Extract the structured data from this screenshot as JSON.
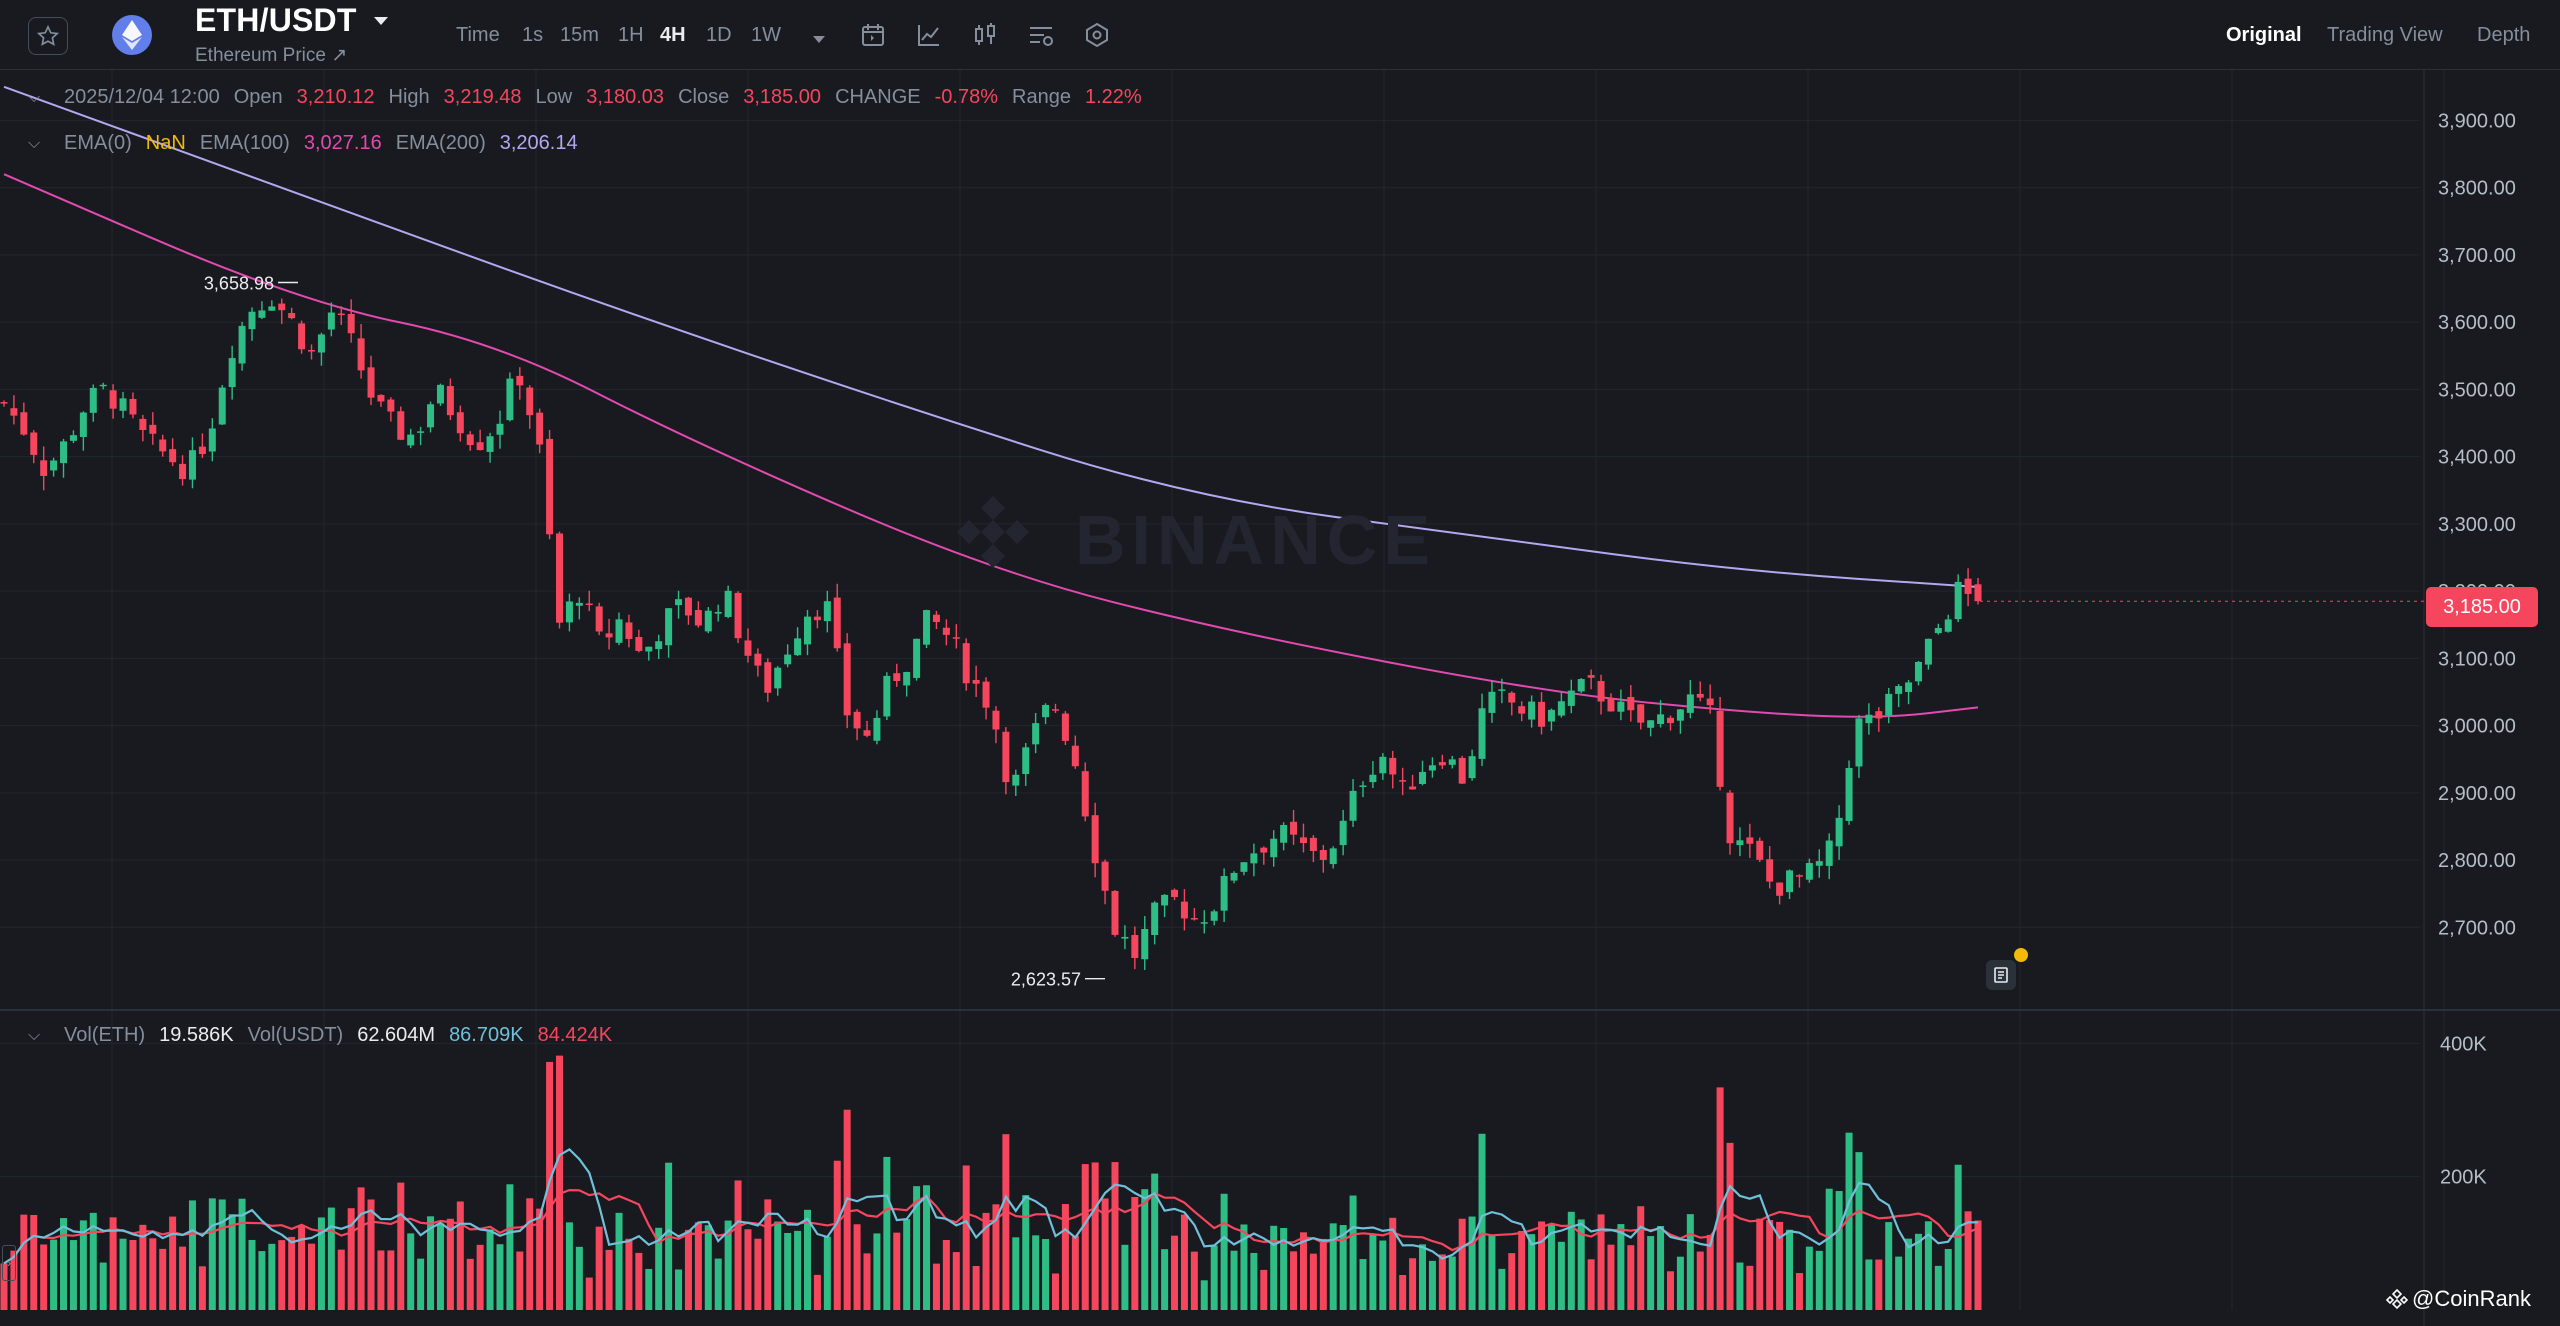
{
  "header": {
    "pair": "ETH/USDT",
    "subtitle": "Ethereum Price ↗",
    "timeframes": [
      "Time",
      "1s",
      "15m",
      "1H",
      "4H",
      "1D",
      "1W"
    ],
    "active_timeframe": "4H",
    "view_tabs": [
      "Original",
      "Trading View",
      "Depth"
    ],
    "active_view": "Original"
  },
  "ohlc": {
    "date": "2025/12/04 12:00",
    "open_label": "Open",
    "open": "3,210.12",
    "high_label": "High",
    "high": "3,219.48",
    "low_label": "Low",
    "low": "3,180.03",
    "close_label": "Close",
    "close": "3,185.00",
    "change_label": "CHANGE",
    "change": "-0.78%",
    "range_label": "Range",
    "range": "1.22%"
  },
  "ema": {
    "ema0_label": "EMA(0)",
    "ema0": "NaN",
    "ema100_label": "EMA(100)",
    "ema100": "3,027.16",
    "ema200_label": "EMA(200)",
    "ema200": "3,206.14"
  },
  "volume_legend": {
    "vol_eth_label": "Vol(ETH)",
    "vol_eth": "19.586K",
    "vol_usdt_label": "Vol(USDT)",
    "vol_usdt": "62.604M",
    "ma1": "86.709K",
    "ma2": "84.424K"
  },
  "current_price": "3,185.00",
  "watermark": "BINANCE",
  "footer_brand": "@CoinRank",
  "colors": {
    "up": "#2ebd85",
    "down": "#f6465d",
    "ema100": "#e24ab0",
    "ema200": "#b4a7f0",
    "vol_ma1": "#6fc0d8",
    "vol_ma2": "#f6465d",
    "background": "#181a20"
  },
  "icons": [
    "star-icon",
    "ethereum-icon",
    "caret-down-icon",
    "calendar-icon",
    "line-chart-icon",
    "candle-icon",
    "indicator-icon",
    "settings-hex-icon",
    "note-icon",
    "binance-diamond-icon"
  ],
  "chart_data": {
    "type": "candlestick",
    "title": "ETH/USDT",
    "interval": "4H",
    "y_axis": {
      "ticks": [
        2700,
        2800,
        2900,
        3000,
        3100,
        3200,
        3300,
        3400,
        3500,
        3600,
        3700,
        3800,
        3900
      ],
      "tick_labels": [
        "2,700.00",
        "2,800.00",
        "2,900.00",
        "3,000.00",
        "3,100.00",
        "3,200.00",
        "3,300.00",
        "3,400.00",
        "3,500.00",
        "3,600.00",
        "3,700.00",
        "3,800.00",
        "3,900.00"
      ],
      "range": [
        2580,
        3975
      ]
    },
    "volume_axis": {
      "ticks": [
        200000,
        400000
      ],
      "tick_labels": [
        "200K",
        "400K"
      ],
      "range": [
        0,
        420000
      ]
    },
    "annotations": [
      {
        "label": "3,658.98",
        "type": "max",
        "value": 3658.98
      },
      {
        "label": "2,623.57",
        "type": "min",
        "value": 2623.57
      }
    ],
    "close_path": [
      3480,
      3440,
      3380,
      3420,
      3480,
      3500,
      3460,
      3420,
      3400,
      3380,
      3440,
      3560,
      3620,
      3640,
      3600,
      3550,
      3620,
      3560,
      3480,
      3440,
      3430,
      3500,
      3460,
      3420,
      3450,
      3530,
      3420,
      3150,
      3200,
      3120,
      3160,
      3100,
      3150,
      3180,
      3150,
      3200,
      3120,
      3050,
      3110,
      3170,
      3180,
      3020,
      2980,
      3060,
      3100,
      3160,
      3130,
      3070,
      3030,
      2900,
      2980,
      3040,
      2960,
      2820,
      2700,
      2660,
      2720,
      2740,
      2710,
      2740,
      2800,
      2820,
      2840,
      2820,
      2800,
      2840,
      2920,
      2960,
      2900,
      2940,
      2960,
      2920,
      3030,
      3040,
      3020,
      3010,
      3040,
      3060,
      3040,
      3010,
      3000,
      3020,
      3040,
      3010,
      2830,
      2810,
      2760,
      2770,
      2780,
      2820,
      3000,
      3010,
      3040,
      3080,
      3140,
      3200,
      3185
    ],
    "ema100": [
      {
        "x": 0,
        "y": 3820
      },
      {
        "x": 0.15,
        "y": 3630
      },
      {
        "x": 0.25,
        "y": 3570
      },
      {
        "x": 0.35,
        "y": 3420
      },
      {
        "x": 0.5,
        "y": 3230
      },
      {
        "x": 0.62,
        "y": 3140
      },
      {
        "x": 0.78,
        "y": 3050
      },
      {
        "x": 0.88,
        "y": 3020
      },
      {
        "x": 0.95,
        "y": 3010
      },
      {
        "x": 1,
        "y": 3027.16
      }
    ],
    "ema200": [
      {
        "x": 0,
        "y": 3950
      },
      {
        "x": 0.15,
        "y": 3790
      },
      {
        "x": 0.3,
        "y": 3630
      },
      {
        "x": 0.45,
        "y": 3480
      },
      {
        "x": 0.6,
        "y": 3340
      },
      {
        "x": 0.75,
        "y": 3280
      },
      {
        "x": 0.88,
        "y": 3230
      },
      {
        "x": 1,
        "y": 3206.14
      }
    ]
  }
}
